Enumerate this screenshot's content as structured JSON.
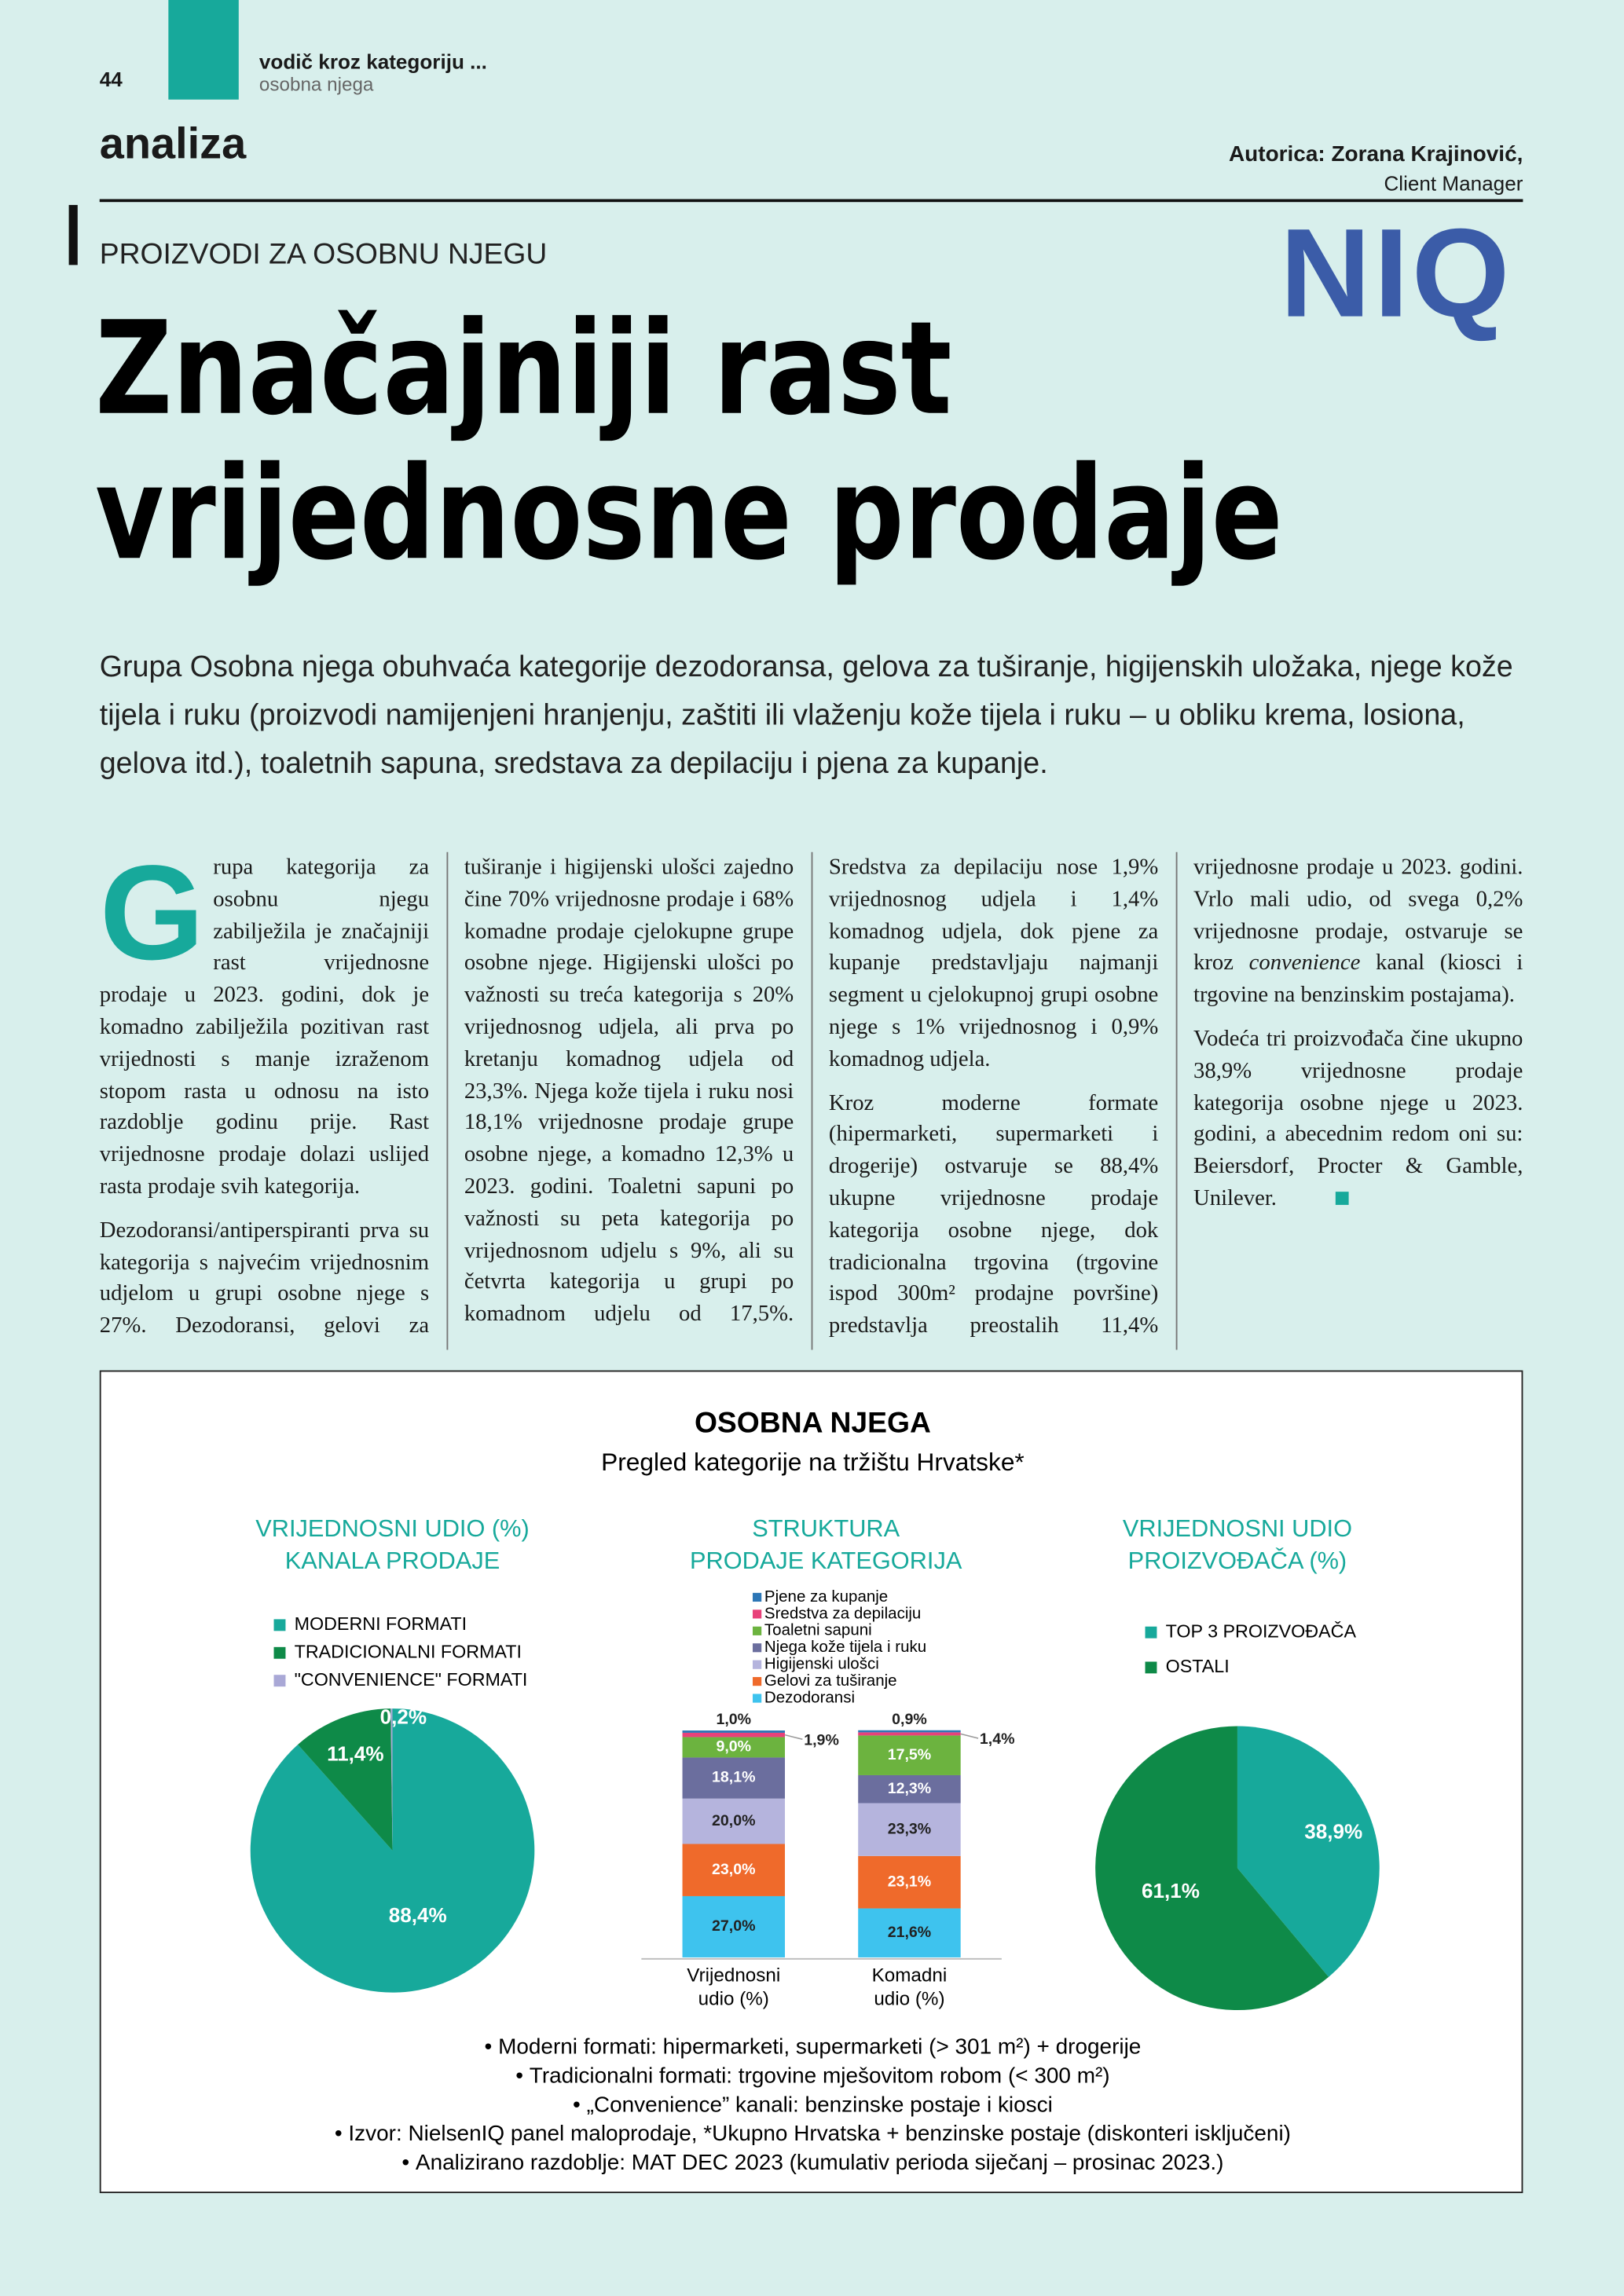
{
  "header": {
    "page_number": "44",
    "section": "vodič kroz kategoriju ...",
    "subsection": "osobna njega",
    "rubric": "analiza",
    "author": "Autorica: Zorana Krajinović,",
    "author_role": "Client Manager",
    "logo": "NIQ"
  },
  "article": {
    "kicker": "PROIZVODI ZA OSOBNU NJEGU",
    "title_lines": [
      "Značajniji rast",
      "vrijednosne prodaje"
    ],
    "lead": "Grupa Osobna njega obuhvaća kategorije dezodoransa, gelova za tuširanje, higijenskih uložaka, njege kože tijela i ruku (proizvodi namijenjeni hranjenju, zaštiti ili vlaženju kože tijela i ruku – u obliku krema, losiona, gelova itd.), toaletnih sapuna, sredstava za depilaciju i pjena za kupanje.",
    "drop_cap": "G",
    "paragraphs": [
      [
        "rupa kategorija za osobnu njegu zabilježila je značajniji rast vrijednosne prodaje u 2023. godini, dok je komadno zabilježila pozitivan rast vrijednosti s manje izraženom stopom rasta u odnosu na isto razdoblje godinu prije. Rast vrijednosne prodaje dolazi uslijed rasta prodaje svih kategorija."
      ],
      [
        "Dezodoransi/antiperspiranti prva su kategorija s najvećim vrijednosnim udjelom u grupi osobne njege s 27%. Dezodoransi, gelovi za tuširanje i higijenski ulošci zajedno čine 70% vrijednosne prodaje i 68% komadne prodaje cjelokupne grupe osobne njege. Higijenski ulošci po važnosti su treća kategorija s 20% vrijednosnog udjela, ali prva po kretanju komadnog udjela od 23,3%. Njega kože tijela i ruku nosi 18,1% vrijednosne prodaje grupe osobne njege, a komadno 12,3% u 2023. godini. Toaletni sapuni po važnosti su peta kategorija po vrijednosnom udjelu s 9%, ali su četvrta kategorija u grupi po komadnom udjelu od 17,5%. Sredstva za depilaciju nose 1,9% vrijednosnog udjela i 1,4% komadnog udjela, dok pjene za kupanje predstavljaju najmanji segment u cjelokupnoj grupi osobne njege s 1% vrijednosnog i 0,9% komadnog udjela."
      ],
      [
        "Kroz moderne formate (hipermarketi, supermarketi i drogerije) ostvaruje se 88,4% ukupne vrijednosne prodaje kategorija osobne njege, dok tradicionalna trgovina (trgovine ispod 300m² prodajne površine) predstavlja preostalih 11,4% vrijednosne prodaje u 2023. godini. Vrlo mali udio, od svega 0,2% vrijednosne prodaje, ostvaruje se kroz ",
        "convenience",
        " kanal (kiosci i trgovine na benzinskim postajama)."
      ],
      [
        "Vodeća tri proizvođača čine ukupno 38,9% vrijednosne prodaje kategorija osobne njege u 2023. godini, a abecednim redom oni su: Beiersdorf, Procter & Gamble, Unilever."
      ]
    ]
  },
  "figure": {
    "title": "OSOBNA NJEGA",
    "subtitle": "Pregled kategorije na tržištu Hrvatske*",
    "charts": [
      {
        "type": "pie",
        "title": [
          "VRIJEDNOSNI UDIO (%)",
          "KANALA PRODAJE"
        ],
        "categories": [
          "MODERNI FORMATI",
          "TRADICIONALNI FORMATI",
          "\"CONVENIENCE\" FORMATI"
        ],
        "values": [
          88.4,
          11.4,
          0.2
        ],
        "value_labels": [
          "88,4%",
          "11,4%",
          "0,2%"
        ],
        "colors": [
          "#17a99b",
          "#0e8a48",
          "#a9a8d6"
        ]
      },
      {
        "type": "bar",
        "stacked": true,
        "title": [
          "STRUKTURA",
          "PRODAJE KATEGORIJA"
        ],
        "categories": [
          [
            "Vrijednosni",
            "udio (%)"
          ],
          [
            "Komadni",
            "udio (%)"
          ]
        ],
        "ylim": [
          0,
          100
        ],
        "series": [
          {
            "name": "Dezodoransi",
            "color": "#3ec3ee",
            "values": [
              27.0,
              21.6
            ],
            "value_labels": [
              "27,0%",
              "21,6%"
            ]
          },
          {
            "name": "Gelovi za tuširanje",
            "color": "#ef6a2b",
            "values": [
              23.0,
              23.1
            ],
            "value_labels": [
              "23,0%",
              "23,1%"
            ]
          },
          {
            "name": "Higijenski ulošci",
            "color": "#b5b4dd",
            "values": [
              20.0,
              23.3
            ],
            "value_labels": [
              "20,0%",
              "23,3%"
            ]
          },
          {
            "name": "Njega kože tijela i ruku",
            "color": "#6b6e9e",
            "values": [
              18.1,
              12.3
            ],
            "value_labels": [
              "18,1%",
              "12,3%"
            ]
          },
          {
            "name": "Toaletni sapuni",
            "color": "#6cb33f",
            "values": [
              9.0,
              17.5
            ],
            "value_labels": [
              "9,0%",
              "17,5%"
            ]
          },
          {
            "name": "Sredstva za depilaciju",
            "color": "#e8417a",
            "values": [
              1.9,
              1.4
            ],
            "value_labels": [
              "1,9%",
              "1,4%"
            ]
          },
          {
            "name": "Pjene za kupanje",
            "color": "#2c76b6",
            "values": [
              1.0,
              0.9
            ],
            "value_labels": [
              "1,0%",
              "0,9%"
            ]
          }
        ]
      },
      {
        "type": "pie",
        "title": [
          "VRIJEDNOSNI UDIO",
          "PROIZVOĐAČA (%)"
        ],
        "categories": [
          "TOP 3 PROIZVOĐAČA",
          "OSTALI"
        ],
        "values": [
          38.9,
          61.1
        ],
        "value_labels": [
          "38,9%",
          "61,1%"
        ],
        "colors": [
          "#17a99b",
          "#0e8a48"
        ]
      }
    ],
    "notes": [
      "Moderni formati: hipermarketi, supermarketi (> 301 m²) + drogerije",
      "Tradicionalni formati: trgovine mješovitom robom (< 300 m²)",
      "„Convenience” kanali: benzinske postaje i kiosci",
      "Izvor: NielsenIQ panel maloprodaje, *Ukupno Hrvatska + benzinske postaje (diskonteri isključeni)",
      "Analizirano razdoblje: MAT DEC 2023 (kumulativ perioda siječanj – prosinac 2023.)"
    ]
  }
}
